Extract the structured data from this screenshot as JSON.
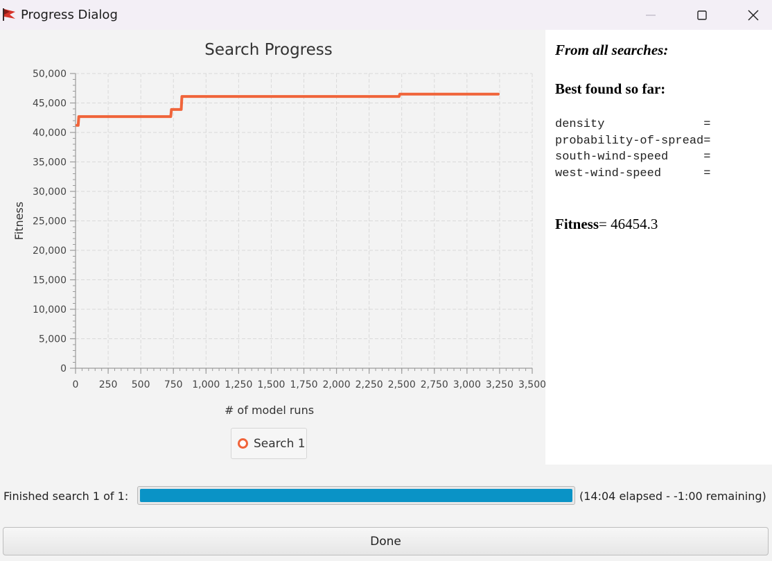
{
  "window": {
    "title": "Progress Dialog"
  },
  "chart_data": {
    "type": "line",
    "title": "Search Progress",
    "xlabel": "# of model runs",
    "ylabel": "Fitness",
    "xlim": [
      0,
      3500
    ],
    "ylim": [
      0,
      50000
    ],
    "x_ticks": [
      "0",
      "250",
      "500",
      "750",
      "1,000",
      "1,250",
      "1,500",
      "1,750",
      "2,000",
      "2,250",
      "2,500",
      "2,750",
      "3,000",
      "3,250",
      "3,500"
    ],
    "y_ticks": [
      "0",
      "5,000",
      "10,000",
      "15,000",
      "20,000",
      "25,000",
      "30,000",
      "35,000",
      "40,000",
      "45,000",
      "50,000"
    ],
    "grid": true,
    "legend_position": "bottom-center",
    "series": [
      {
        "name": "Search 1",
        "color": "#f0643a",
        "points": [
          [
            10,
            41200
          ],
          [
            20,
            41200
          ],
          [
            25,
            42700
          ],
          [
            730,
            42700
          ],
          [
            735,
            43900
          ],
          [
            810,
            43900
          ],
          [
            815,
            46100
          ],
          [
            2480,
            46100
          ],
          [
            2485,
            46500
          ],
          [
            3240,
            46500
          ]
        ]
      }
    ]
  },
  "info_panel": {
    "heading_all": "From all searches:",
    "heading_best": "Best found so far:",
    "parameters": [
      "density              =",
      "probability-of-spread=",
      "south-wind-speed     =",
      "west-wind-speed      ="
    ],
    "fitness_label": "Fitness",
    "fitness_value": "= 46454.3"
  },
  "status": {
    "label": "Finished search 1 of 1:",
    "progress_percent": 100,
    "elapsed": "(14:04 elapsed - -1:00 remaining)"
  },
  "buttons": {
    "done": "Done"
  },
  "icons": {
    "app": "app-flag-icon",
    "minimize": "minimize-icon",
    "maximize": "maximize-icon",
    "close": "close-icon"
  }
}
